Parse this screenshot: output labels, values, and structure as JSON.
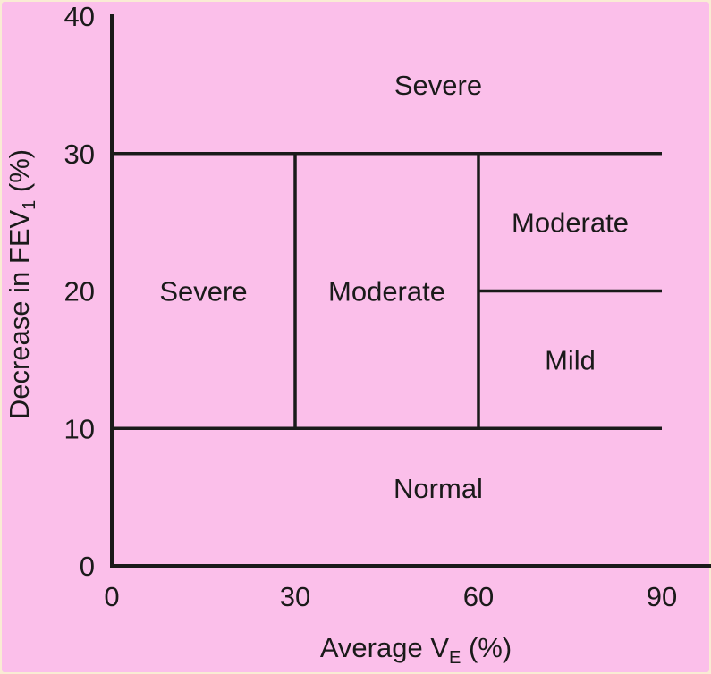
{
  "chart_data": {
    "type": "region-chart",
    "title": "",
    "xlabel": "Average V",
    "xlabel_sub": "E",
    "xlabel_suffix": " (%)",
    "ylabel": "Decrease in FEV",
    "ylabel_sub": "1",
    "ylabel_suffix": " (%)",
    "xlim": [
      0,
      90
    ],
    "ylim": [
      0,
      40
    ],
    "x_ticks": [
      0,
      30,
      60,
      90
    ],
    "y_ticks": [
      0,
      10,
      20,
      30,
      40
    ],
    "region_boundaries": {
      "horizontal": [
        {
          "y": 30,
          "x_from": 0,
          "x_to": 90
        },
        {
          "y": 10,
          "x_from": 0,
          "x_to": 90
        },
        {
          "y": 20,
          "x_from": 60,
          "x_to": 90
        }
      ],
      "vertical": [
        {
          "x": 30,
          "y_from": 10,
          "y_to": 30
        },
        {
          "x": 60,
          "y_from": 10,
          "y_to": 30
        }
      ]
    },
    "regions": [
      {
        "label": "Severe",
        "x": [
          0,
          90
        ],
        "y": [
          30,
          40
        ]
      },
      {
        "label": "Severe",
        "x": [
          0,
          30
        ],
        "y": [
          10,
          30
        ]
      },
      {
        "label": "Moderate",
        "x": [
          30,
          60
        ],
        "y": [
          10,
          30
        ]
      },
      {
        "label": "Moderate",
        "x": [
          60,
          90
        ],
        "y": [
          20,
          30
        ]
      },
      {
        "label": "Mild",
        "x": [
          60,
          90
        ],
        "y": [
          10,
          20
        ]
      },
      {
        "label": "Normal",
        "x": [
          0,
          90
        ],
        "y": [
          0,
          10
        ]
      }
    ],
    "colors": {
      "panel_background": "#fbbfea",
      "page_background": "#f9ecd4",
      "lines": "#1a1a1a",
      "text": "#1a1a1a"
    }
  }
}
